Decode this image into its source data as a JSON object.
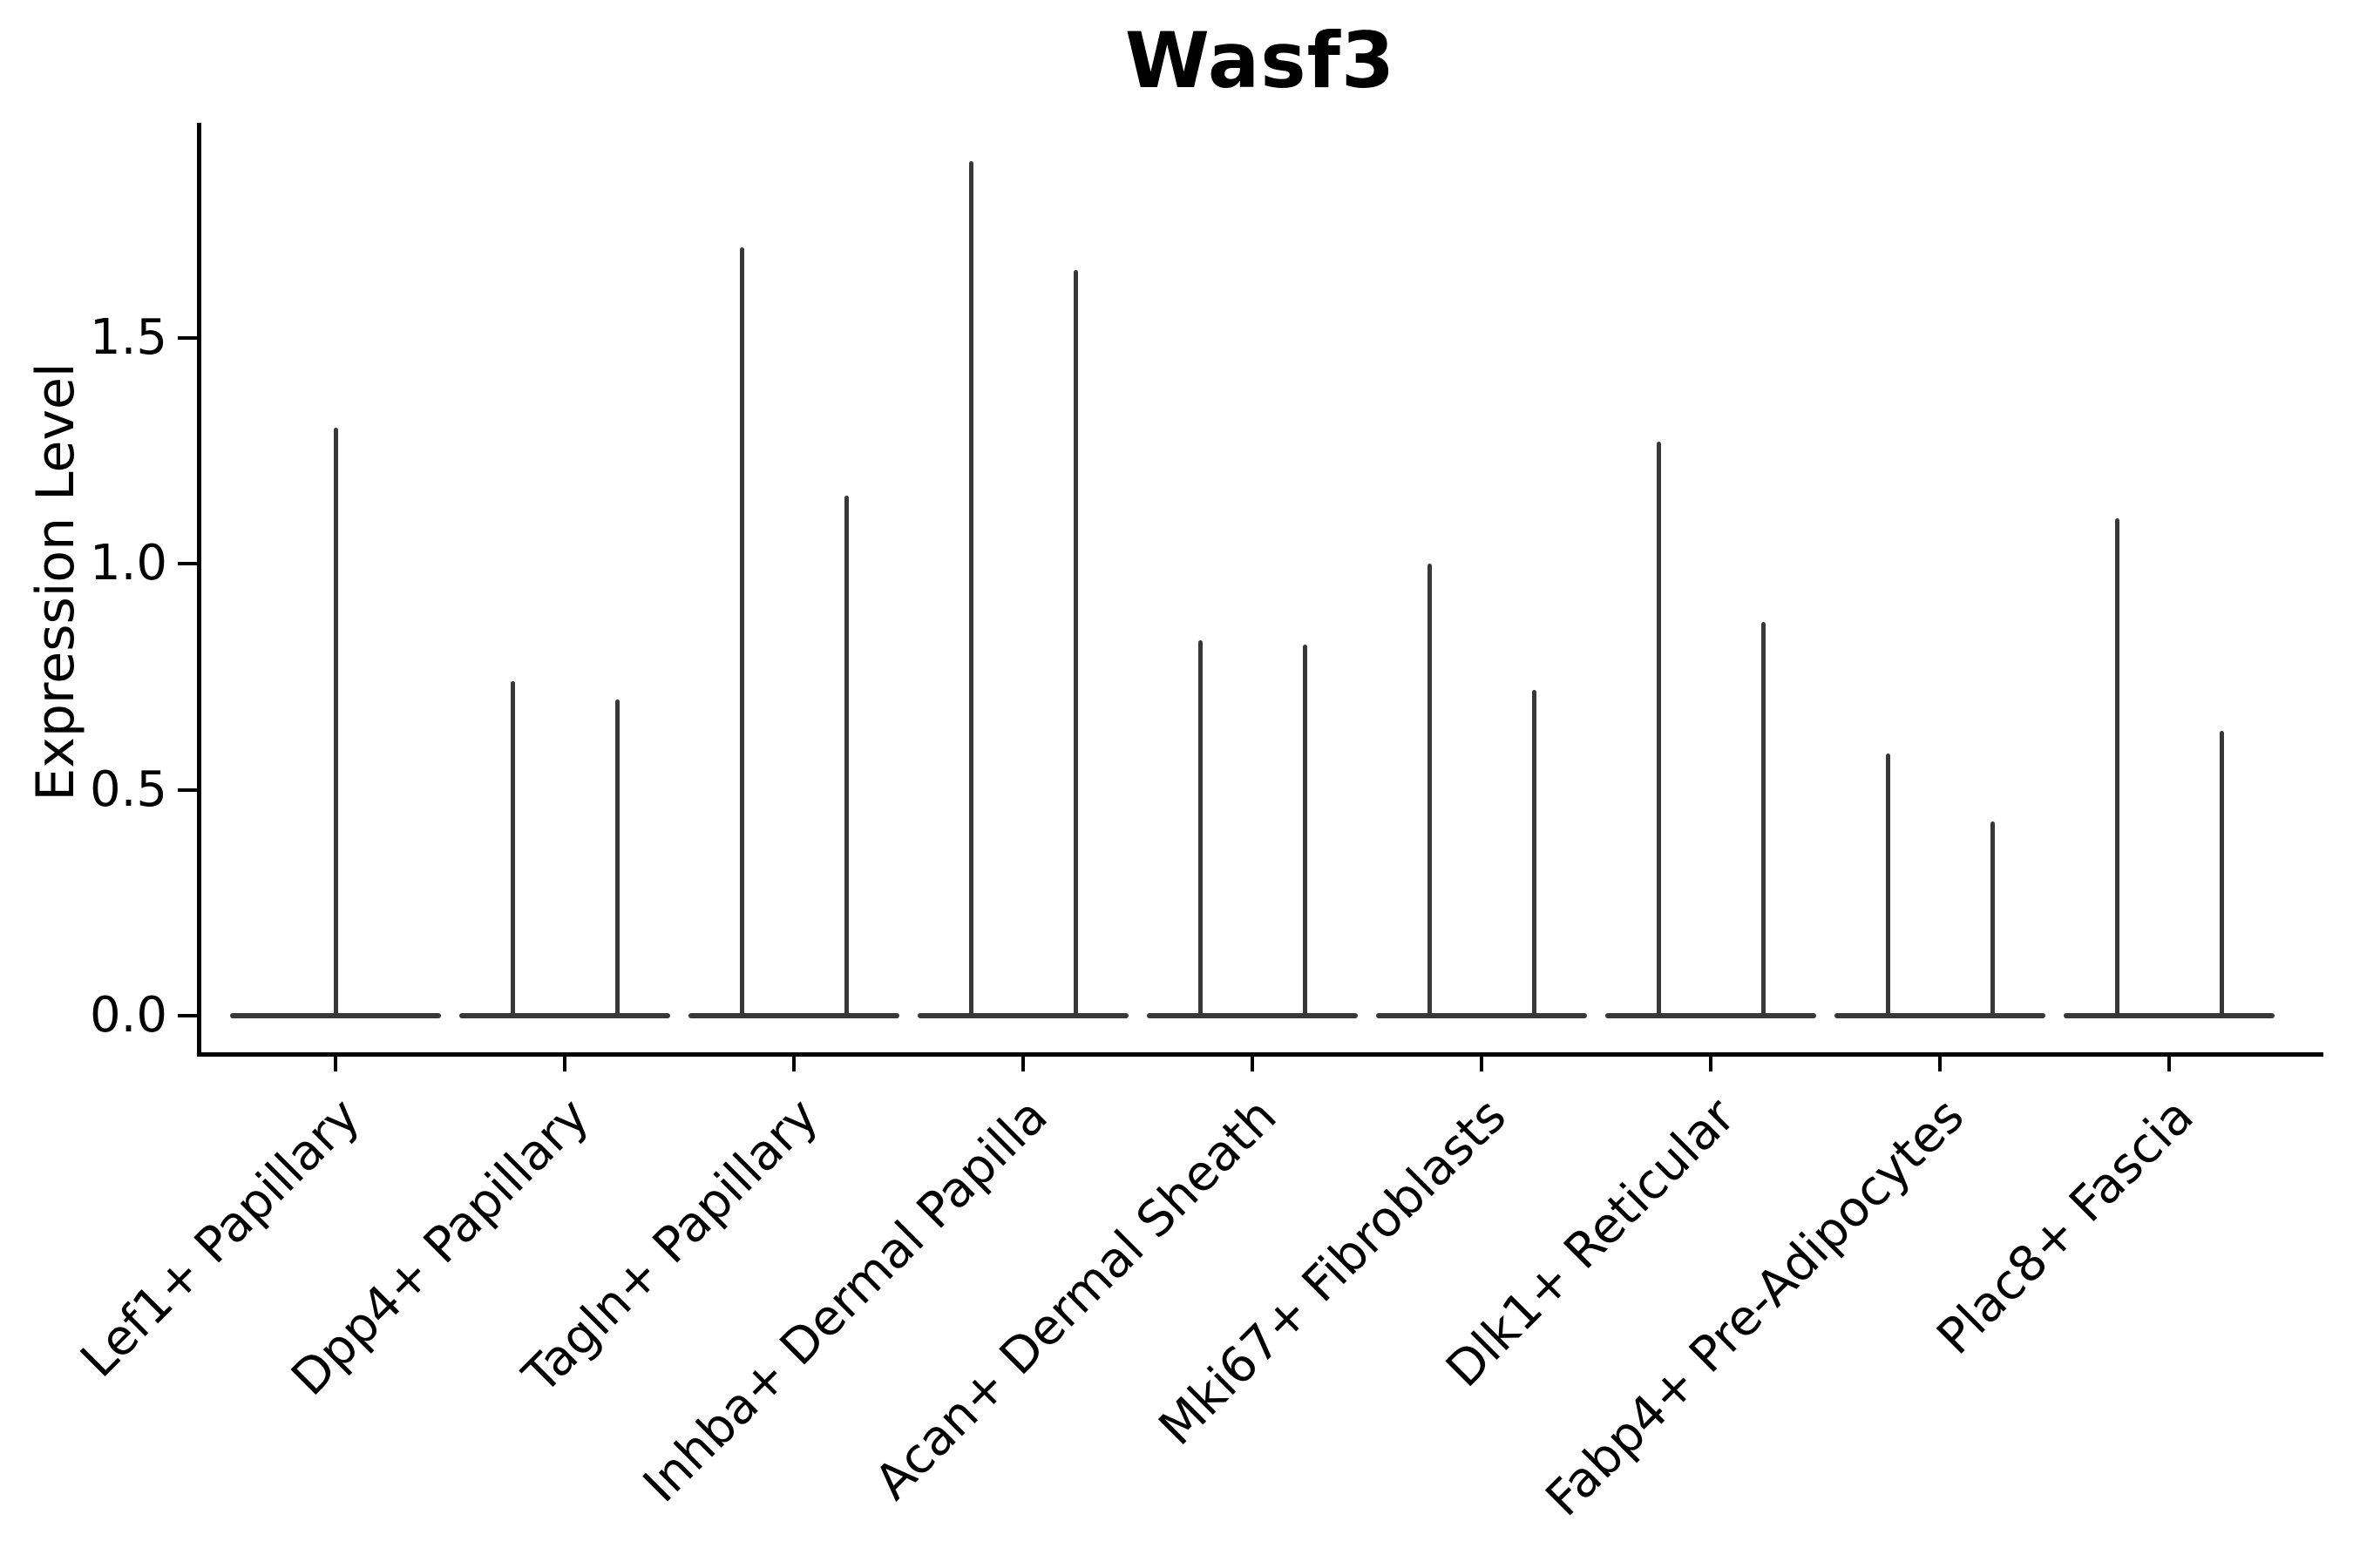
{
  "figure": {
    "background": "#ffffff"
  },
  "chart_data": {
    "type": "violin",
    "title": "Wasf3",
    "xlabel": "",
    "ylabel": "Expression Level",
    "ylim": [
      -0.08,
      1.98
    ],
    "grid": false,
    "legend": "none",
    "yticks": [
      {
        "label": "0.0",
        "value": 0.0
      },
      {
        "label": "0.5",
        "value": 0.5
      },
      {
        "label": "1.0",
        "value": 1.0
      },
      {
        "label": "1.5",
        "value": 1.5
      }
    ],
    "baseline_value": 0.0,
    "violin_color": "#383838",
    "axis_color": "#000000",
    "categories": [
      {
        "label": "Lef1+ Papillary",
        "spike_values": [
          1.3
        ]
      },
      {
        "label": "Dpp4+ Papillary",
        "spike_values": [
          0.74,
          0.7
        ]
      },
      {
        "label": "Tagln+ Papillary",
        "spike_values": [
          1.7,
          1.15
        ]
      },
      {
        "label": "Inhba+ Dermal Papilla",
        "spike_values": [
          1.89,
          1.65
        ]
      },
      {
        "label": "Acan+ Dermal Sheath",
        "spike_values": [
          0.83,
          0.82
        ]
      },
      {
        "label": "Mki67+ Fibroblasts",
        "spike_values": [
          1.0,
          0.72
        ]
      },
      {
        "label": "Dlk1+ Reticular",
        "spike_values": [
          1.27,
          0.87
        ]
      },
      {
        "label": "Fabp4+ Pre-Adipocytes",
        "spike_values": [
          0.58,
          0.43
        ]
      },
      {
        "label": "Plac8+ Fascia",
        "spike_values": [
          1.1,
          0.63
        ]
      }
    ]
  }
}
